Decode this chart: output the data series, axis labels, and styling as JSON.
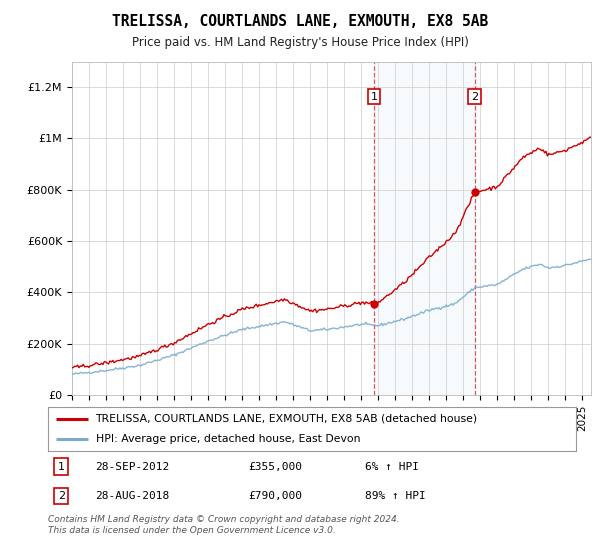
{
  "title": "TRELISSA, COURTLANDS LANE, EXMOUTH, EX8 5AB",
  "subtitle": "Price paid vs. HM Land Registry's House Price Index (HPI)",
  "ylabel_ticks": [
    "£0",
    "£200K",
    "£400K",
    "£600K",
    "£800K",
    "£1M",
    "£1.2M"
  ],
  "ytick_values": [
    0,
    200000,
    400000,
    600000,
    800000,
    1000000,
    1200000
  ],
  "ylim": [
    0,
    1300000
  ],
  "xlim_start": 1995.0,
  "xlim_end": 2025.5,
  "hpi_color": "#7aadcc",
  "price_color": "#cc0000",
  "purchase1_x": 2012.75,
  "purchase1_y": 355000,
  "purchase2_x": 2018.67,
  "purchase2_y": 790000,
  "legend_line1": "TRELISSA, COURTLANDS LANE, EXMOUTH, EX8 5AB (detached house)",
  "legend_line2": "HPI: Average price, detached house, East Devon",
  "annotation1_label": "1",
  "annotation1_date": "28-SEP-2012",
  "annotation1_price": "£355,000",
  "annotation1_hpi": "6% ↑ HPI",
  "annotation2_label": "2",
  "annotation2_date": "28-AUG-2018",
  "annotation2_price": "£790,000",
  "annotation2_hpi": "89% ↑ HPI",
  "footer": "Contains HM Land Registry data © Crown copyright and database right 2024.\nThis data is licensed under the Open Government Licence v3.0.",
  "background_color": "#ffffff",
  "grid_color": "#cccccc",
  "highlight_color": "#d8e8f5"
}
